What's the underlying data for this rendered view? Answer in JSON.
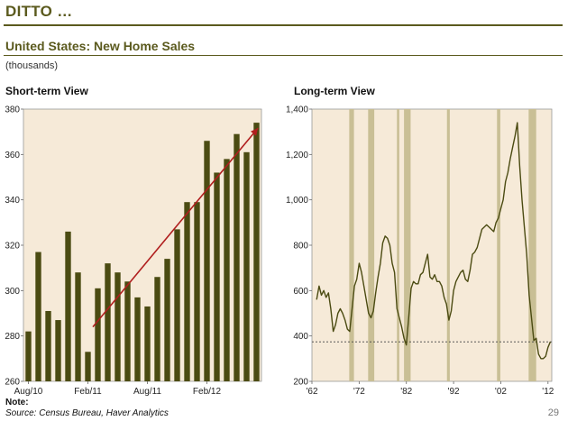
{
  "page": {
    "title": "DITTO …",
    "subtitle": "United States: New Home Sales",
    "units": "(thousands)",
    "note": "Note:",
    "source": "Source: Census Bureau, Haver Analytics",
    "page_number": "29"
  },
  "chart_data": [
    {
      "type": "bar",
      "title": "Short-term View",
      "ylim": [
        260,
        380
      ],
      "yticks": [
        "260",
        "280",
        "300",
        "320",
        "340",
        "360",
        "380"
      ],
      "xtick_labels": [
        "Aug/10",
        "Feb/11",
        "Aug/11",
        "Feb/12"
      ],
      "xtick_index": [
        0,
        6,
        12,
        18
      ],
      "bar_color": "#4b4b12",
      "background": "#f6ead8",
      "values": [
        282,
        317,
        291,
        287,
        326,
        308,
        273,
        301,
        312,
        308,
        304,
        297,
        293,
        306,
        314,
        327,
        339,
        339,
        366,
        352,
        358,
        369,
        361,
        374
      ],
      "trend_arrow": {
        "from": [
          6,
          284
        ],
        "to": [
          23,
          374
        ],
        "color": "#b01e1e"
      }
    },
    {
      "type": "line",
      "title": "Long-term View",
      "ylim": [
        200,
        1400
      ],
      "yticks": [
        "200",
        "400",
        "600",
        "800",
        "1,000",
        "1,200",
        "1,400"
      ],
      "xlim": [
        1962,
        2012.8
      ],
      "xtick_labels": [
        "'62",
        "'72",
        "'82",
        "'92",
        "'02",
        "'12"
      ],
      "xtick_years": [
        1962,
        1972,
        1982,
        1992,
        2002,
        2012
      ],
      "line_color": "#4b4b12",
      "background": "#f6ead8",
      "recession_color": "#c9bf95",
      "recessions": [
        [
          1969.9,
          1970.9
        ],
        [
          1973.9,
          1975.2
        ],
        [
          1980.0,
          1980.5
        ],
        [
          1981.5,
          1982.9
        ],
        [
          1990.6,
          1991.2
        ],
        [
          2001.2,
          2001.9
        ],
        [
          2007.9,
          2009.5
        ]
      ],
      "reference_level": 374,
      "x": [
        1963.0,
        1963.5,
        1964.0,
        1964.5,
        1965.0,
        1965.5,
        1966.0,
        1966.5,
        1967.0,
        1967.5,
        1968.0,
        1968.5,
        1969.0,
        1969.5,
        1970.0,
        1970.5,
        1971.0,
        1971.5,
        1972.0,
        1972.5,
        1973.0,
        1973.5,
        1974.0,
        1974.5,
        1975.0,
        1975.5,
        1976.0,
        1976.5,
        1977.0,
        1977.5,
        1978.0,
        1978.5,
        1979.0,
        1979.5,
        1980.0,
        1980.5,
        1981.0,
        1981.5,
        1982.0,
        1982.5,
        1983.0,
        1983.5,
        1984.0,
        1984.5,
        1985.0,
        1985.5,
        1986.0,
        1986.5,
        1987.0,
        1987.5,
        1988.0,
        1988.5,
        1989.0,
        1989.5,
        1990.0,
        1990.5,
        1991.0,
        1991.5,
        1992.0,
        1992.5,
        1993.0,
        1993.5,
        1994.0,
        1994.5,
        1995.0,
        1995.5,
        1996.0,
        1996.5,
        1997.0,
        1997.5,
        1998.0,
        1998.5,
        1999.0,
        1999.5,
        2000.0,
        2000.5,
        2001.0,
        2001.5,
        2002.0,
        2002.5,
        2003.0,
        2003.5,
        2004.0,
        2004.5,
        2005.0,
        2005.5,
        2006.0,
        2006.5,
        2007.0,
        2007.5,
        2008.0,
        2008.5,
        2009.0,
        2009.5,
        2010.0,
        2010.5,
        2011.0,
        2011.5,
        2012.0,
        2012.5
      ],
      "y": [
        560,
        620,
        580,
        600,
        570,
        590,
        520,
        420,
        450,
        500,
        520,
        500,
        470,
        430,
        420,
        520,
        620,
        650,
        720,
        680,
        620,
        560,
        500,
        480,
        510,
        590,
        660,
        720,
        810,
        840,
        830,
        800,
        720,
        680,
        520,
        480,
        440,
        390,
        360,
        480,
        610,
        640,
        630,
        630,
        670,
        680,
        720,
        760,
        660,
        650,
        670,
        640,
        640,
        620,
        570,
        540,
        470,
        510,
        600,
        640,
        660,
        680,
        690,
        650,
        640,
        690,
        760,
        770,
        790,
        830,
        870,
        880,
        890,
        880,
        870,
        860,
        900,
        920,
        960,
        1000,
        1080,
        1120,
        1180,
        1230,
        1280,
        1340,
        1150,
        1000,
        880,
        760,
        580,
        480,
        380,
        390,
        320,
        300,
        300,
        310,
        350,
        374
      ]
    }
  ]
}
